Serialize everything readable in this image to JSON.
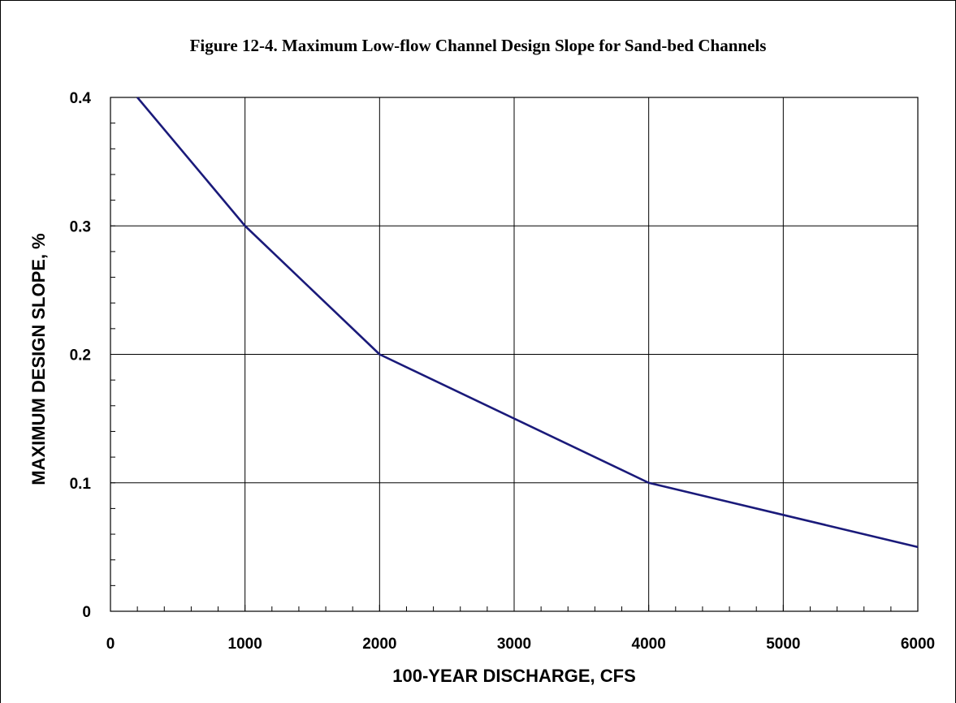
{
  "chart_data": {
    "type": "line",
    "title": "Figure 12-4.  Maximum Low-flow Channel Design Slope for Sand-bed Channels",
    "xlabel": "100-YEAR DISCHARGE, CFS",
    "ylabel": "MAXIMUM DESIGN SLOPE, %",
    "xlim": [
      0,
      6000
    ],
    "ylim": [
      0,
      0.4
    ],
    "x_ticks": [
      "0",
      "1000",
      "2000",
      "3000",
      "4000",
      "5000",
      "6000"
    ],
    "y_ticks": [
      "0",
      "0.1",
      "0.2",
      "0.3",
      "0.4"
    ],
    "x_tick_values": [
      0,
      1000,
      2000,
      3000,
      4000,
      5000,
      6000
    ],
    "y_tick_values": [
      0,
      0.1,
      0.2,
      0.3,
      0.4
    ],
    "x_minor_step": 200,
    "y_minor_step": 0.02,
    "grid": true,
    "series": [
      {
        "color": "#1a1a7a",
        "x": [
          200,
          1000,
          2000,
          3000,
          4000,
          5000,
          6000
        ],
        "y": [
          0.4,
          0.3,
          0.2,
          0.15,
          0.1,
          0.075,
          0.05
        ]
      }
    ]
  }
}
